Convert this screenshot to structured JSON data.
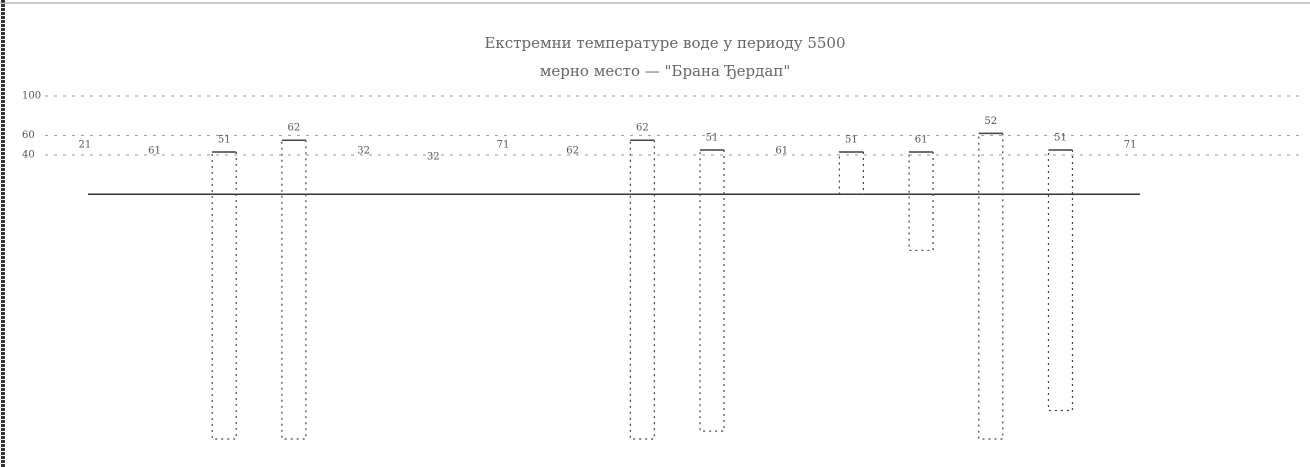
{
  "chart_data": {
    "type": "range",
    "title": "Екстремни температуре воде у периоду 5500",
    "subtitle": "мерно место — \"Брана Ђердап\"",
    "categories": [
      null,
      null,
      null,
      null,
      null,
      null,
      null,
      null,
      null,
      null,
      null,
      null,
      null,
      null,
      null,
      null
    ],
    "annotations": [
      "21",
      "61",
      "51",
      "62",
      "32",
      "32",
      "71",
      "62",
      "62",
      "51",
      "61",
      "51",
      "61",
      "52",
      "51",
      "71"
    ],
    "series": [
      {
        "name": null,
        "color": "#444444",
        "high": [
          null,
          null,
          43,
          55,
          null,
          null,
          null,
          null,
          55,
          45,
          null,
          43,
          43,
          62,
          45,
          null
        ],
        "low": [
          null,
          null,
          -249,
          -249,
          null,
          null,
          null,
          null,
          -249,
          -241,
          null,
          0,
          -57,
          -249,
          -220,
          null
        ]
      }
    ],
    "ylim": [
      -250,
      100
    ],
    "yticks": [
      100,
      60,
      40
    ],
    "grid": true
  }
}
